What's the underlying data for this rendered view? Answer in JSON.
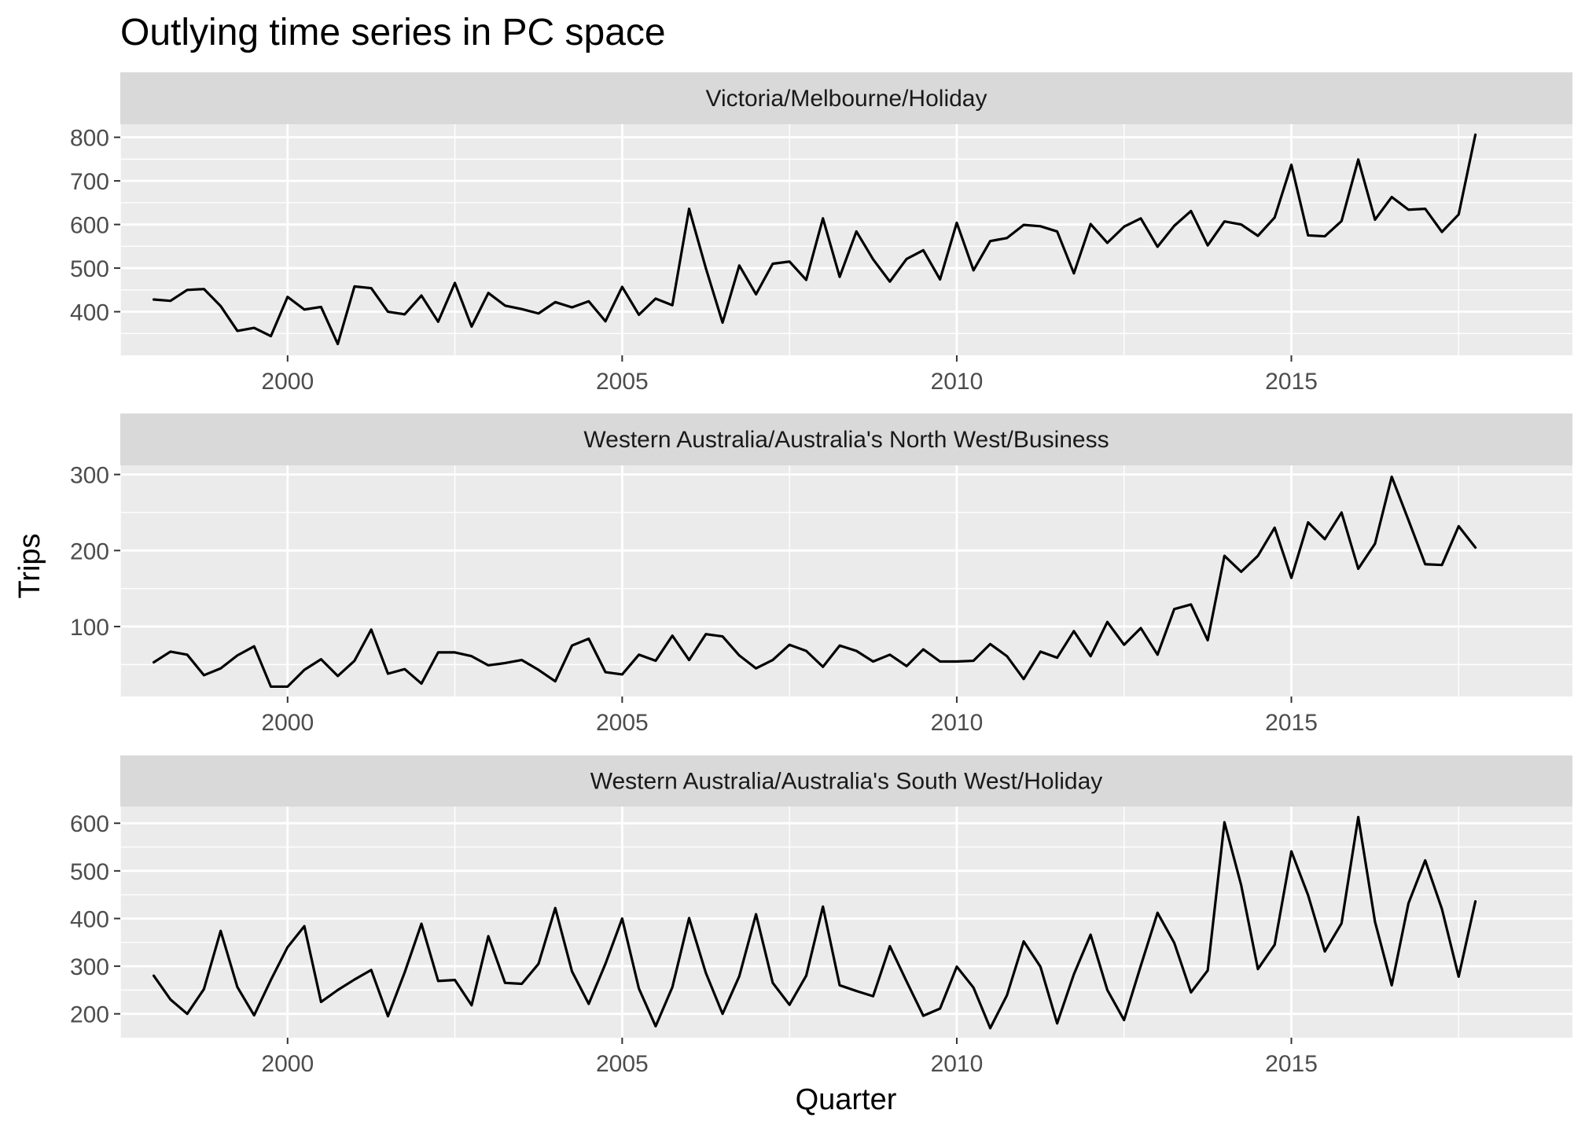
{
  "chart_data": {
    "type": "line",
    "title": "Outlying time series in PC space",
    "xlabel": "Quarter",
    "ylabel": "Trips",
    "facet_layout": "stacked vertically, one panel per series, free y scales",
    "grid": true,
    "legend": "none",
    "colors": {
      "line": "#000000",
      "panel_bg": "#ebebeb",
      "strip_bg": "#d9d9d9",
      "grid": "#ffffff"
    },
    "xlim": [
      1997.5,
      2019.2
    ],
    "x_ticks": [
      2000,
      2005,
      2010,
      2015
    ],
    "x_start": 1998.0,
    "x_step": 0.25,
    "panels": [
      {
        "strip": "Victoria/Melbourne/Holiday",
        "ylim": [
          300,
          830
        ],
        "y_ticks": [
          400,
          500,
          600,
          700,
          800
        ],
        "values": [
          428,
          425,
          450,
          452,
          413,
          356,
          363,
          344,
          434,
          405,
          411,
          326,
          458,
          454,
          400,
          394,
          437,
          377,
          466,
          366,
          443,
          414,
          406,
          396,
          422,
          410,
          424,
          378,
          457,
          393,
          430,
          415,
          636,
          500,
          375,
          506,
          440,
          510,
          515,
          473,
          614,
          480,
          584,
          520,
          469,
          521,
          541,
          474,
          604,
          495,
          562,
          569,
          599,
          596,
          584,
          488,
          601,
          558,
          595,
          614,
          549,
          597,
          631,
          552,
          607,
          600,
          574,
          616,
          737,
          575,
          573,
          608,
          749,
          611,
          663,
          634,
          636,
          583,
          623,
          806
        ]
      },
      {
        "strip": "Western Australia/Australia's North West/Business",
        "ylim": [
          8,
          312
        ],
        "y_ticks": [
          100,
          200,
          300
        ],
        "values": [
          53,
          67,
          63,
          36,
          45,
          62,
          74,
          21,
          21,
          43,
          57,
          35,
          55,
          96,
          38,
          44,
          25,
          66,
          66,
          61,
          49,
          52,
          56,
          43,
          28,
          75,
          84,
          40,
          37,
          63,
          55,
          88,
          56,
          90,
          87,
          62,
          45,
          56,
          76,
          68,
          47,
          75,
          68,
          54,
          63,
          48,
          70,
          54,
          54,
          55,
          77,
          61,
          31,
          67,
          59,
          94,
          61,
          106,
          76,
          98,
          63,
          123,
          129,
          82,
          193,
          172,
          193,
          230,
          164,
          237,
          215,
          250,
          176,
          209,
          297,
          240,
          182,
          181,
          232,
          204
        ]
      },
      {
        "strip": "Western Australia/Australia's South West/Holiday",
        "ylim": [
          150,
          635
        ],
        "y_ticks": [
          200,
          300,
          400,
          500,
          600
        ],
        "values": [
          280,
          230,
          200,
          252,
          374,
          256,
          197,
          271,
          340,
          384,
          225,
          250,
          272,
          292,
          195,
          287,
          389,
          269,
          271,
          218,
          363,
          265,
          263,
          305,
          422,
          289,
          221,
          305,
          400,
          253,
          174,
          256,
          401,
          286,
          200,
          279,
          409,
          265,
          219,
          280,
          425,
          260,
          248,
          237,
          342,
          268,
          196,
          211,
          299,
          255,
          170,
          239,
          352,
          299,
          180,
          283,
          366,
          250,
          187,
          301,
          412,
          349,
          245,
          291,
          602,
          470,
          294,
          345,
          541,
          449,
          331,
          390,
          613,
          393,
          260,
          432,
          522,
          420,
          278,
          436
        ]
      }
    ]
  }
}
